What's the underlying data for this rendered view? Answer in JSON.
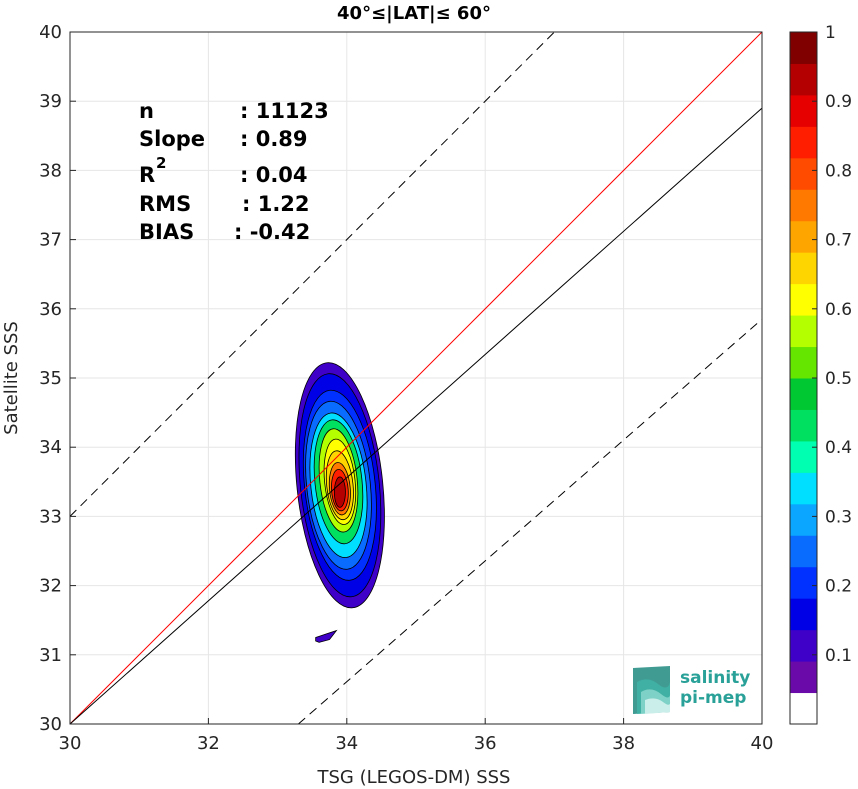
{
  "chart_data": {
    "type": "contour",
    "title": "40°≤|LAT|≤ 60°",
    "xlabel": "TSG (LEGOS-DM) SSS",
    "ylabel": "Satellite SSS",
    "xlim": [
      30,
      40
    ],
    "ylim": [
      30,
      40
    ],
    "xticks": [
      30,
      32,
      34,
      36,
      38,
      40
    ],
    "yticks": [
      30,
      31,
      32,
      33,
      34,
      35,
      36,
      37,
      38,
      39,
      40
    ],
    "grid": true,
    "stats": {
      "n_label": "n",
      "n_value": ": 11123",
      "slope_label": "Slope",
      "slope_value": ": 0.89",
      "r2_label": "R",
      "r2_sup": "2",
      "r2_value": ": 0.04",
      "rms_label": "RMS",
      "rms_value": ": 1.22",
      "bias_label": "BIAS",
      "bias_value": ": -0.42"
    },
    "lines": [
      {
        "name": "one-to-one",
        "color": "#ff0000",
        "style": "solid",
        "points": [
          [
            30,
            30
          ],
          [
            40,
            40
          ]
        ]
      },
      {
        "name": "fit",
        "color": "#000000",
        "style": "solid",
        "points": [
          [
            30,
            30
          ],
          [
            40,
            38.9
          ]
        ]
      },
      {
        "name": "upper-bound",
        "color": "#000000",
        "style": "dashed",
        "points": [
          [
            30,
            33
          ],
          [
            37,
            40
          ]
        ]
      },
      {
        "name": "lower-bound",
        "color": "#000000",
        "style": "dashed",
        "points": [
          [
            33.3,
            30
          ],
          [
            40,
            35.85
          ]
        ]
      }
    ],
    "density_peak": {
      "x": 33.9,
      "y": 33.4
    },
    "colorbar": {
      "ticks": [
        "0.1",
        "0.2",
        "0.3",
        "0.4",
        "0.5",
        "0.6",
        "0.7",
        "0.8",
        "0.9",
        "1"
      ],
      "colors": [
        "#ffffff",
        "#6a0aa9",
        "#3f00c8",
        "#0000e6",
        "#0031ff",
        "#0a6bff",
        "#0aa6ff",
        "#00dfff",
        "#00ffb0",
        "#00e060",
        "#00c832",
        "#64e600",
        "#b4ff00",
        "#ffff00",
        "#ffd500",
        "#ffa500",
        "#ff7800",
        "#ff4b00",
        "#ff1e00",
        "#e60000",
        "#b40000",
        "#800000"
      ]
    },
    "contour_levels": [
      {
        "level": 0.05,
        "color": "#3f00c8",
        "cx": 33.9,
        "cy": 33.45,
        "rx": 0.62,
        "ry": 1.78,
        "tilt": -6
      },
      {
        "level": 0.15,
        "color": "#0000e6",
        "cx": 33.9,
        "cy": 33.45,
        "rx": 0.57,
        "ry": 1.62,
        "tilt": -6
      },
      {
        "level": 0.25,
        "color": "#0031ff",
        "cx": 33.9,
        "cy": 33.45,
        "rx": 0.51,
        "ry": 1.38,
        "tilt": -6
      },
      {
        "level": 0.3,
        "color": "#0a6bff",
        "cx": 33.88,
        "cy": 33.45,
        "rx": 0.46,
        "ry": 1.22,
        "tilt": -6
      },
      {
        "level": 0.35,
        "color": "#00dfff",
        "cx": 33.88,
        "cy": 33.45,
        "rx": 0.4,
        "ry": 1.05,
        "tilt": -6
      },
      {
        "level": 0.45,
        "color": "#00e060",
        "cx": 33.88,
        "cy": 33.5,
        "rx": 0.34,
        "ry": 0.9,
        "tilt": -6
      },
      {
        "level": 0.55,
        "color": "#b4ff00",
        "cx": 33.88,
        "cy": 33.52,
        "rx": 0.27,
        "ry": 0.75,
        "tilt": -6
      },
      {
        "level": 0.65,
        "color": "#ffff00",
        "cx": 33.9,
        "cy": 33.5,
        "rx": 0.22,
        "ry": 0.62,
        "tilt": -6
      },
      {
        "level": 0.7,
        "color": "#ffd500",
        "cx": 33.9,
        "cy": 33.45,
        "rx": 0.19,
        "ry": 0.5,
        "tilt": -6
      },
      {
        "level": 0.8,
        "color": "#ff7800",
        "cx": 33.9,
        "cy": 33.4,
        "rx": 0.15,
        "ry": 0.38,
        "tilt": -5
      },
      {
        "level": 0.9,
        "color": "#ff1e00",
        "cx": 33.9,
        "cy": 33.38,
        "rx": 0.12,
        "ry": 0.3,
        "tilt": -4
      },
      {
        "level": 0.95,
        "color": "#b40000",
        "cx": 33.9,
        "cy": 33.35,
        "rx": 0.08,
        "ry": 0.22,
        "tilt": 0
      }
    ],
    "island": {
      "color": "#3f00c8",
      "points": [
        [
          33.55,
          31.25
        ],
        [
          33.7,
          31.3
        ],
        [
          33.85,
          31.35
        ],
        [
          33.75,
          31.22
        ],
        [
          33.6,
          31.18
        ],
        [
          33.55,
          31.2
        ]
      ]
    }
  },
  "logo": {
    "line1": "salinity",
    "line2": "pi-mep",
    "color": "#2aa198"
  }
}
